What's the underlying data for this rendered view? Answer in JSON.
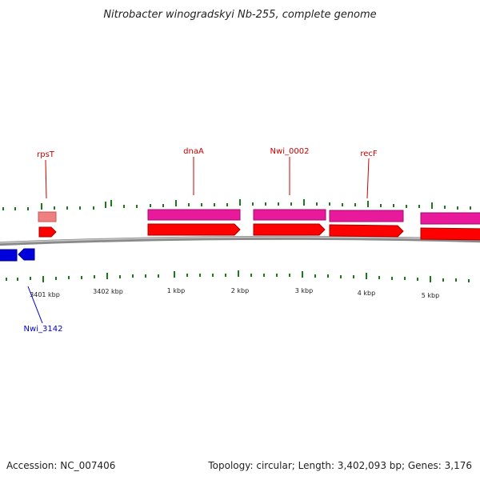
{
  "title": "Nitrobacter winogradskyi Nb-255, complete genome",
  "footer": {
    "accession": "Accession: NC_007406",
    "summary": "Topology: circular; Length: 3,402,093 bp; Genes: 3,176"
  },
  "colors": {
    "backbone": "#8a8a8a",
    "tick": "#1a7a1a",
    "forward_gene": "#ff0000",
    "forward_cds": "#e8199b",
    "reverse_gene": "#0000dd",
    "forward_label": "#cc0000",
    "reverse_label": "#0000cc",
    "rna_product": "#f08080"
  },
  "scale_labels": [
    "3401 kbp",
    "3402 kbp",
    "1 kbp",
    "2 kbp",
    "3 kbp",
    "4 kbp",
    "5 kbp"
  ],
  "genes": [
    {
      "name": "rpsT",
      "strand": "forward"
    },
    {
      "name": "dnaA",
      "strand": "forward"
    },
    {
      "name": "Nwi_0002",
      "strand": "forward"
    },
    {
      "name": "recF",
      "strand": "forward"
    },
    {
      "name": "Nwi_3142",
      "strand": "reverse"
    }
  ]
}
